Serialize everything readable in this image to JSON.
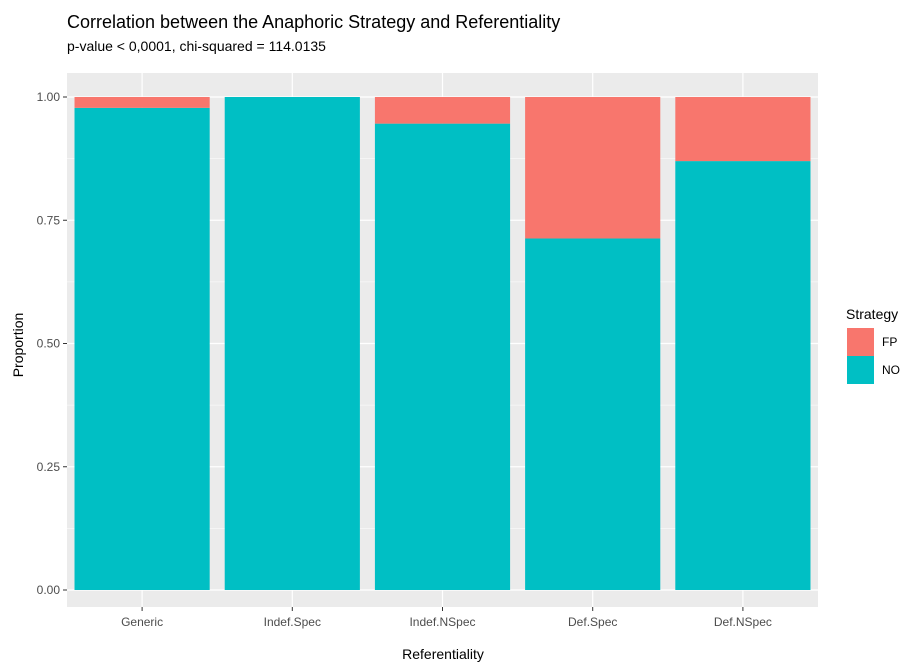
{
  "chart_data": {
    "type": "bar",
    "stacked": true,
    "title": "Correlation between the Anaphoric Strategy and Referentiality",
    "subtitle": "p-value < 0,0001, chi-squared = 114.0135",
    "xlabel": "Referentiality",
    "ylabel": "Proportion",
    "ylim": [
      0,
      1
    ],
    "yticks": [
      "0.00",
      "0.25",
      "0.50",
      "0.75",
      "1.00"
    ],
    "categories": [
      "Generic",
      "Indef.Spec",
      "Indef.NSpec",
      "Def.Spec",
      "Def.NSpec"
    ],
    "series": [
      {
        "name": "NO",
        "color": "#00BFC4",
        "values": [
          0.978,
          1.0,
          0.946,
          0.713,
          0.87
        ]
      },
      {
        "name": "FP",
        "color": "#F8766D",
        "values": [
          0.022,
          0.0,
          0.054,
          0.287,
          0.13
        ]
      }
    ],
    "legend": {
      "title": "Strategy",
      "position": "right",
      "entries": [
        "FP",
        "NO"
      ]
    },
    "grid": true,
    "panel_background": "#EBEBEB"
  }
}
